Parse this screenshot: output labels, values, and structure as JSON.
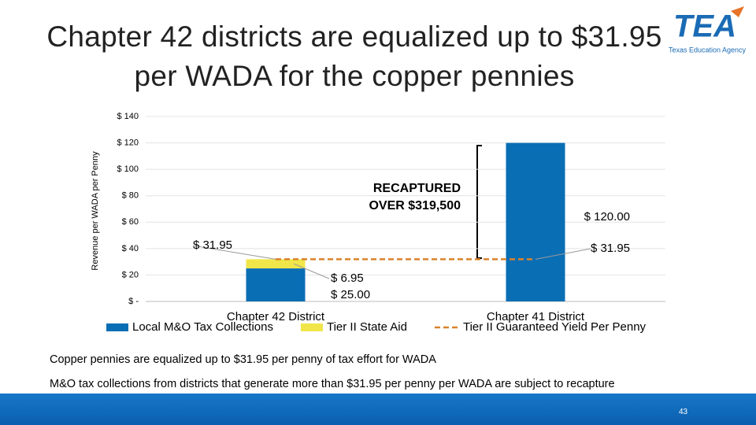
{
  "header": {
    "title": "Chapter 42 districts are equalized up to $31.95 per WADA for the copper pennies",
    "logo": "TEA",
    "logo_subtitle": "Texas Education Agency"
  },
  "chart_data": {
    "type": "bar",
    "y_label": "Revenue per WADA per Penny",
    "categories": [
      "Chapter 42 District",
      "Chapter 41 District"
    ],
    "series": [
      {
        "name": "Local M&O Tax Collections",
        "color": "#0a6eb4",
        "values": [
          25,
          120
        ],
        "value_labels": [
          "$ 25.00",
          "$ 120.00"
        ]
      },
      {
        "name": "Tier II State Aid",
        "color": "#f0e64a",
        "values": [
          6.95,
          null
        ],
        "value_labels": [
          "$ 6.95",
          null
        ]
      },
      {
        "name": "Tier II Guaranteed Yield Per Penny",
        "type": "line",
        "color": "#d9822b",
        "values": [
          31.95,
          31.95
        ],
        "value_labels": [
          "$ 31.95",
          "$ 31.95"
        ]
      }
    ],
    "ylim": [
      0,
      140
    ],
    "yticks": [
      {
        "value": 0,
        "label": "$ -"
      },
      {
        "value": 20,
        "label": "$ 20"
      },
      {
        "value": 40,
        "label": "$ 40"
      },
      {
        "value": 60,
        "label": "$ 60"
      },
      {
        "value": 80,
        "label": "$ 80"
      },
      {
        "value": 100,
        "label": "$ 100"
      },
      {
        "value": 120,
        "label": "$ 120"
      },
      {
        "value": 140,
        "label": "$ 140"
      }
    ],
    "grid": true,
    "annotation": "RECAPTURED OVER $319,500"
  },
  "notes": [
    "Copper pennies are equalized up to $31.95 per penny of tax effort for WADA",
    "M&O tax collections from districts that generate more than $31.95 per penny per WADA are subject to recapture"
  ],
  "page_number": "43"
}
